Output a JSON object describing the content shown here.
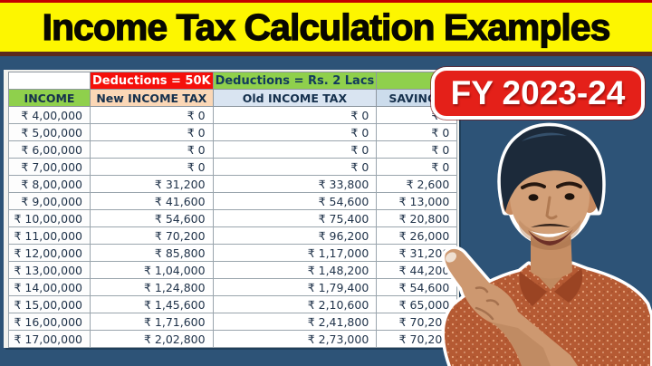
{
  "title": "Income Tax Calculation Examples",
  "badge": {
    "label": "FY 2023-24"
  },
  "table": {
    "group_headers": {
      "blank": "",
      "new_regime_note": "Deductions = 50K",
      "old_regime_note": "Deductions = Rs. 2 Lacs"
    },
    "columns": [
      "INCOME",
      "New INCOME TAX",
      "Old INCOME TAX",
      "SAVINGS"
    ],
    "rows": [
      [
        "₹ 4,00,000",
        "₹ 0",
        "₹ 0",
        "₹ 0"
      ],
      [
        "₹ 5,00,000",
        "₹ 0",
        "₹ 0",
        "₹ 0"
      ],
      [
        "₹ 6,00,000",
        "₹ 0",
        "₹ 0",
        "₹ 0"
      ],
      [
        "₹ 7,00,000",
        "₹ 0",
        "₹ 0",
        "₹ 0"
      ],
      [
        "₹ 8,00,000",
        "₹ 31,200",
        "₹ 33,800",
        "₹ 2,600"
      ],
      [
        "₹ 9,00,000",
        "₹ 41,600",
        "₹ 54,600",
        "₹ 13,000"
      ],
      [
        "₹ 10,00,000",
        "₹ 54,600",
        "₹ 75,400",
        "₹ 20,800"
      ],
      [
        "₹ 11,00,000",
        "₹ 70,200",
        "₹ 96,200",
        "₹ 26,000"
      ],
      [
        "₹ 12,00,000",
        "₹ 85,800",
        "₹ 1,17,000",
        "₹ 31,200"
      ],
      [
        "₹ 13,00,000",
        "₹ 1,04,000",
        "₹ 1,48,200",
        "₹ 44,200"
      ],
      [
        "₹ 14,00,000",
        "₹ 1,24,800",
        "₹ 1,79,400",
        "₹ 54,600"
      ],
      [
        "₹ 15,00,000",
        "₹ 1,45,600",
        "₹ 2,10,600",
        "₹ 65,000"
      ],
      [
        "₹ 16,00,000",
        "₹ 1,71,600",
        "₹ 2,41,800",
        "₹ 70,200"
      ],
      [
        "₹ 17,00,000",
        "₹ 2,02,800",
        "₹ 2,73,000",
        "₹ 70,200"
      ]
    ]
  },
  "chart_data": {
    "type": "table",
    "title": "Income Tax Calculation Examples",
    "subtitle": "FY 2023-24",
    "columns": [
      "INCOME",
      "New INCOME TAX (Deductions = 50K)",
      "Old INCOME TAX (Deductions = Rs. 2 Lacs)",
      "SAVINGS"
    ],
    "income": [
      400000,
      500000,
      600000,
      700000,
      800000,
      900000,
      1000000,
      1100000,
      1200000,
      1300000,
      1400000,
      1500000,
      1600000,
      1700000
    ],
    "new_income_tax": [
      0,
      0,
      0,
      0,
      31200,
      41600,
      54600,
      70200,
      85800,
      104000,
      124800,
      145600,
      171600,
      202800
    ],
    "old_income_tax": [
      0,
      0,
      0,
      0,
      33800,
      54600,
      75400,
      96200,
      117000,
      148200,
      179400,
      210600,
      241800,
      273000
    ],
    "savings": [
      0,
      0,
      0,
      0,
      2600,
      13000,
      20800,
      26000,
      31200,
      44200,
      54600,
      65000,
      70200,
      70200
    ],
    "currency": "INR"
  },
  "person_image": "man-pointing-at-table",
  "colors": {
    "background": "#2d5377",
    "title_bg": "#fdf600",
    "title_text": "#080800",
    "top_strip": "#c40000",
    "badge_bg": "#e42019",
    "badge_text": "#ffffff",
    "deduction_50k_bg": "#f50f0a",
    "deduction_2lacs_bg": "#8fd04c",
    "income_header_bg": "#8fd04c",
    "new_tax_header_bg": "#fbd7b6",
    "old_tax_header_bg": "#d9e4f1",
    "savings_header_bg": "#ccdcec",
    "cell_text": "#20334a"
  }
}
